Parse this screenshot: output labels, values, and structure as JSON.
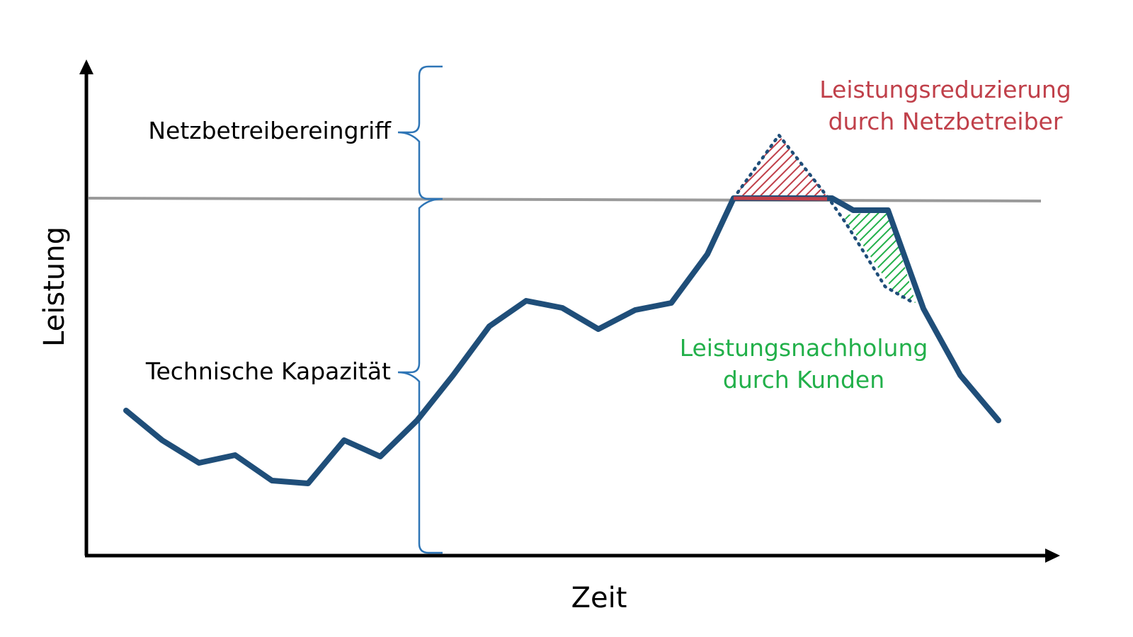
{
  "axes": {
    "y_label": "Leistung",
    "x_label": "Zeit"
  },
  "brace_labels": {
    "upper": "Netzbetreibereingriff",
    "lower": "Technische Kapazität"
  },
  "annotations": {
    "reduction": [
      "Leistungsreduzierung",
      "durch Netzbetreiber"
    ],
    "catch_up": [
      "Leistungsnachholung",
      "durch Kunden"
    ]
  },
  "colors": {
    "curve": "#1F4E79",
    "capacity_line": "#9A9A9A",
    "brace": "#2E75B6",
    "reduction": "#C0404A",
    "catch_up": "#22B04A",
    "axes": "#000000"
  }
}
